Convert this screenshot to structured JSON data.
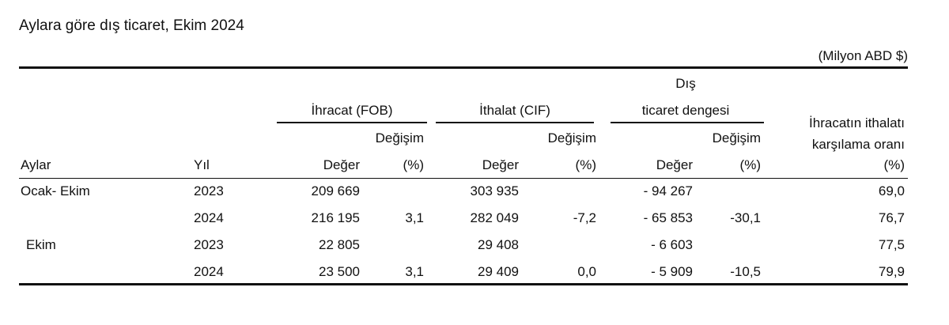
{
  "title": "Aylara göre dış ticaret, Ekim 2024",
  "unit": "(Milyon ABD $)",
  "headers": {
    "exports": "İhracat (FOB)",
    "imports": "İthalat (CIF)",
    "balance_line1": "Dış",
    "balance_line2": "ticaret dengesi",
    "coverage_line1": "İhracatın ithalatı",
    "coverage_line2": "karşılama oranı",
    "change": "Değişim",
    "months": "Aylar",
    "year": "Yıl",
    "value": "Değer",
    "pct": "(%)"
  },
  "rows": [
    {
      "period": "Ocak- Ekim",
      "year": "2023",
      "exp_value": "209 669",
      "exp_change": "",
      "imp_value": "303 935",
      "imp_change": "",
      "bal_value": "- 94 267",
      "bal_change": "",
      "coverage": "69,0"
    },
    {
      "period": "",
      "year": "2024",
      "exp_value": "216 195",
      "exp_change": "3,1",
      "imp_value": "282 049",
      "imp_change": "-7,2",
      "bal_value": "- 65 853",
      "bal_change": "-30,1",
      "coverage": "76,7"
    },
    {
      "period": "Ekim",
      "year": "2023",
      "exp_value": "22 805",
      "exp_change": "",
      "imp_value": "29 408",
      "imp_change": "",
      "bal_value": "- 6 603",
      "bal_change": "",
      "coverage": "77,5"
    },
    {
      "period": "",
      "year": "2024",
      "exp_value": "23 500",
      "exp_change": "3,1",
      "imp_value": "29 409",
      "imp_change": "0,0",
      "bal_value": "- 5 909",
      "bal_change": "-10,5",
      "coverage": "79,9"
    }
  ]
}
